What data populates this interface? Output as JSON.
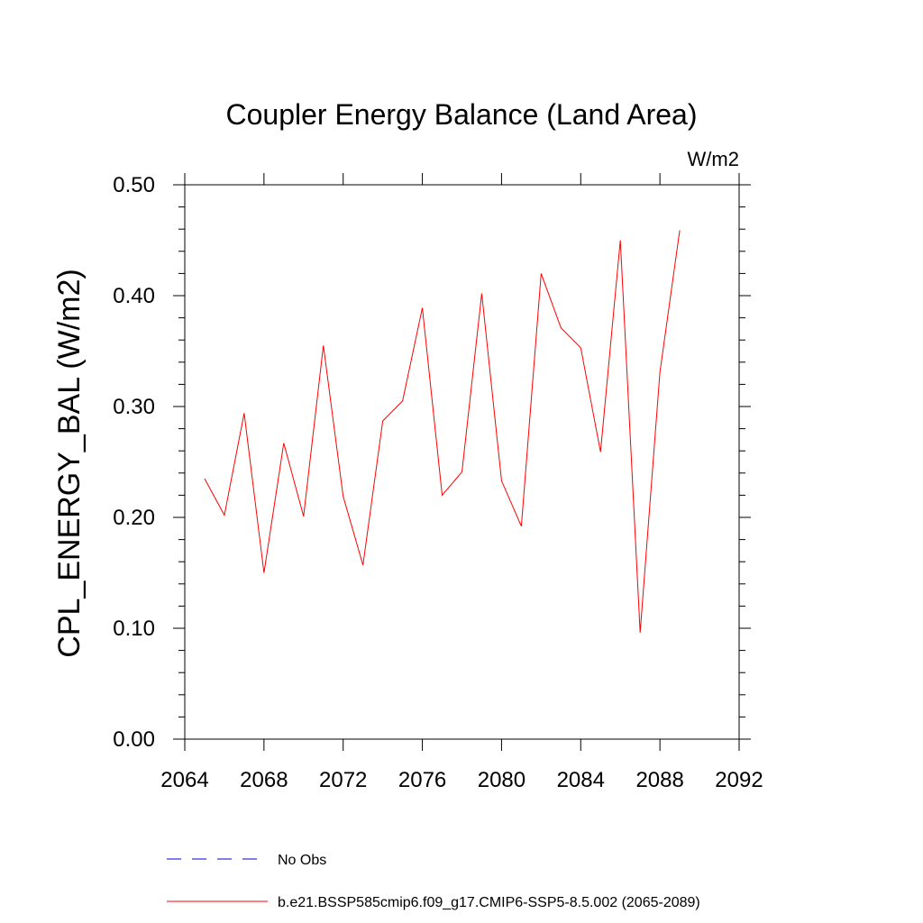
{
  "chart_data": {
    "type": "line",
    "title": "Coupler Energy Balance (Land Area)",
    "units": "W/m2",
    "ylabel": "CPL_ENERGY_BAL  (W/m2)",
    "xlabel": "",
    "xlim": [
      2064,
      2092
    ],
    "ylim": [
      0.0,
      0.5
    ],
    "x_ticks": [
      "2064",
      "2068",
      "2072",
      "2076",
      "2080",
      "2084",
      "2088",
      "2092"
    ],
    "y_ticks": [
      "0.00",
      "0.10",
      "0.20",
      "0.30",
      "0.40",
      "0.50"
    ],
    "grid": false,
    "legend_position": "bottom",
    "series": [
      {
        "name": "No Obs",
        "color": "#0000cc",
        "dash": "dashed",
        "x": [],
        "values": []
      },
      {
        "name": "b.e21.BSSP585cmip6.f09_g17.CMIP6-SSP5-8.5.002 (2065-2089)",
        "color": "#ff0000",
        "dash": "solid",
        "x": [
          2065,
          2066,
          2067,
          2068,
          2069,
          2070,
          2071,
          2072,
          2073,
          2074,
          2075,
          2076,
          2077,
          2078,
          2079,
          2080,
          2081,
          2082,
          2083,
          2084,
          2085,
          2086,
          2087,
          2088,
          2089
        ],
        "values": [
          0.235,
          0.202,
          0.294,
          0.15,
          0.267,
          0.201,
          0.355,
          0.219,
          0.157,
          0.287,
          0.305,
          0.389,
          0.22,
          0.241,
          0.402,
          0.233,
          0.192,
          0.42,
          0.371,
          0.353,
          0.259,
          0.45,
          0.096,
          0.331,
          0.459
        ]
      }
    ]
  }
}
